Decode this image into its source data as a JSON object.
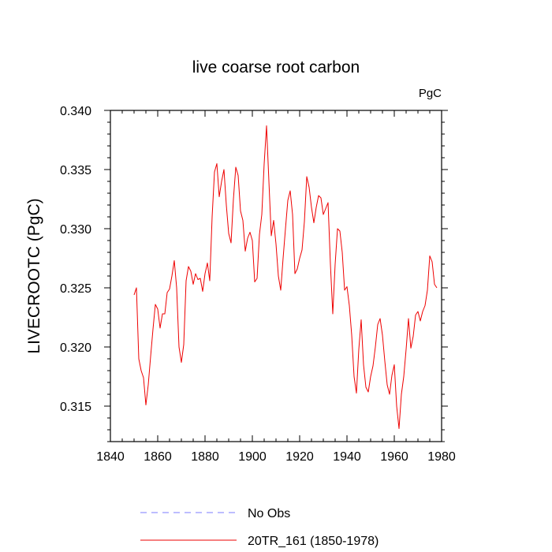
{
  "chart_data": {
    "type": "line",
    "title": "live coarse root carbon",
    "units": "PgC",
    "xlabel": "",
    "ylabel": "LIVECROOTC  (PgC)",
    "xlim": [
      1840,
      1980
    ],
    "ylim": [
      0.312,
      0.34
    ],
    "x_ticks": [
      1840,
      1860,
      1880,
      1900,
      1920,
      1940,
      1960,
      1980
    ],
    "y_ticks": [
      0.315,
      0.32,
      0.325,
      0.33,
      0.335,
      0.34
    ],
    "x_tick_labels": [
      "1840",
      "1860",
      "1880",
      "1900",
      "1920",
      "1940",
      "1960",
      "1980"
    ],
    "y_tick_labels": [
      "0.315",
      "0.320",
      "0.325",
      "0.330",
      "0.335",
      "0.340"
    ],
    "legend": [
      {
        "name": "No Obs",
        "color": "#7b7bff",
        "style": "dashed"
      },
      {
        "name": "20TR_161 (1850-1978)",
        "color": "#ee0000",
        "style": "solid"
      }
    ],
    "series": [
      {
        "name": "20TR_161 (1850-1978)",
        "color": "#ee0000",
        "x": [
          1850,
          1851,
          1852,
          1853,
          1854,
          1855,
          1856,
          1857,
          1858,
          1859,
          1860,
          1861,
          1862,
          1863,
          1864,
          1865,
          1866,
          1867,
          1868,
          1869,
          1870,
          1871,
          1872,
          1873,
          1874,
          1875,
          1876,
          1877,
          1878,
          1879,
          1880,
          1881,
          1882,
          1883,
          1884,
          1885,
          1886,
          1887,
          1888,
          1889,
          1890,
          1891,
          1892,
          1893,
          1894,
          1895,
          1896,
          1897,
          1898,
          1899,
          1900,
          1901,
          1902,
          1903,
          1904,
          1905,
          1906,
          1907,
          1908,
          1909,
          1910,
          1911,
          1912,
          1913,
          1914,
          1915,
          1916,
          1917,
          1918,
          1919,
          1920,
          1921,
          1922,
          1923,
          1924,
          1925,
          1926,
          1927,
          1928,
          1929,
          1930,
          1931,
          1932,
          1933,
          1934,
          1935,
          1936,
          1937,
          1938,
          1939,
          1940,
          1941,
          1942,
          1943,
          1944,
          1945,
          1946,
          1947,
          1948,
          1949,
          1950,
          1951,
          1952,
          1953,
          1954,
          1955,
          1956,
          1957,
          1958,
          1959,
          1960,
          1961,
          1962,
          1963,
          1964,
          1965,
          1966,
          1967,
          1968,
          1969,
          1970,
          1971,
          1972,
          1973,
          1974,
          1975,
          1976,
          1977,
          1978
        ],
        "values": [
          0.3244,
          0.325,
          0.319,
          0.318,
          0.3174,
          0.3151,
          0.3168,
          0.3192,
          0.3215,
          0.3236,
          0.3232,
          0.3216,
          0.3228,
          0.3228,
          0.3246,
          0.3249,
          0.326,
          0.3273,
          0.325,
          0.32,
          0.3187,
          0.3202,
          0.3256,
          0.3268,
          0.3264,
          0.3253,
          0.3262,
          0.3257,
          0.3258,
          0.3247,
          0.3262,
          0.3271,
          0.3256,
          0.331,
          0.3348,
          0.3355,
          0.3327,
          0.334,
          0.335,
          0.332,
          0.3296,
          0.3288,
          0.3325,
          0.3352,
          0.3345,
          0.3315,
          0.3307,
          0.3281,
          0.3292,
          0.3297,
          0.329,
          0.3255,
          0.3258,
          0.3295,
          0.3312,
          0.3355,
          0.3387,
          0.334,
          0.3294,
          0.3307,
          0.3287,
          0.326,
          0.3248,
          0.3275,
          0.33,
          0.3324,
          0.3332,
          0.3312,
          0.3262,
          0.3266,
          0.3275,
          0.3282,
          0.3306,
          0.3344,
          0.3335,
          0.3318,
          0.3305,
          0.3318,
          0.3328,
          0.3326,
          0.3312,
          0.3317,
          0.3322,
          0.327,
          0.3228,
          0.327,
          0.33,
          0.3298,
          0.328,
          0.3248,
          0.3251,
          0.3235,
          0.321,
          0.3175,
          0.3161,
          0.3198,
          0.3223,
          0.3185,
          0.3166,
          0.3162,
          0.3175,
          0.3184,
          0.32,
          0.3219,
          0.3224,
          0.321,
          0.3188,
          0.3168,
          0.316,
          0.3176,
          0.3185,
          0.315,
          0.3131,
          0.316,
          0.3175,
          0.3198,
          0.3224,
          0.3199,
          0.3209,
          0.3227,
          0.323,
          0.3222,
          0.323,
          0.3235,
          0.3248,
          0.3277,
          0.3272,
          0.3253,
          0.325
        ]
      }
    ]
  }
}
